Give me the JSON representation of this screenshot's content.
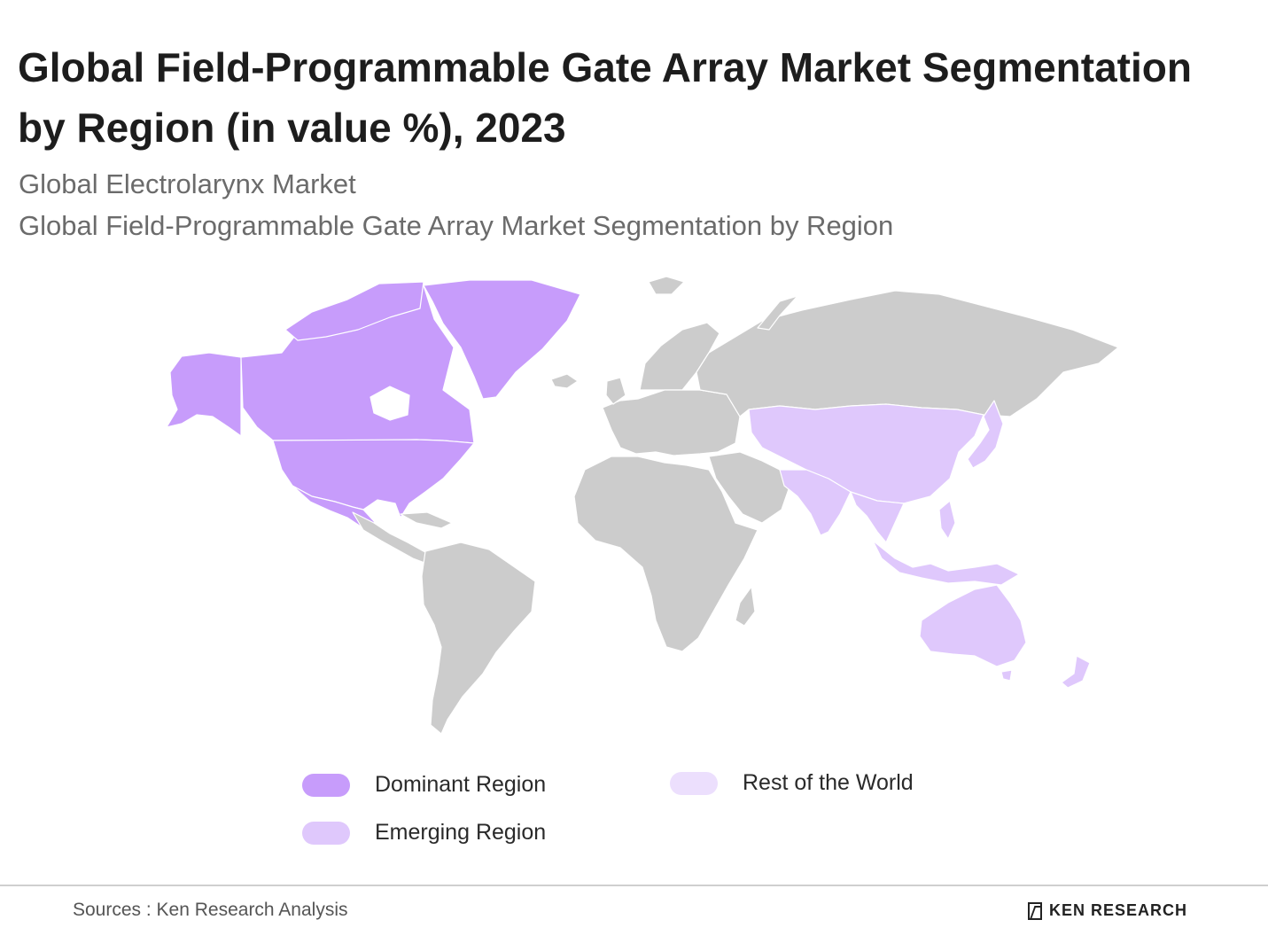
{
  "header": {
    "title": "Global Field-Programmable Gate Array Market Segmentation by Region (in value %), 2023",
    "subtitle_1": "Global Electrolarynx Market",
    "subtitle_2": "Global Field-Programmable Gate Array Market Segmentation by Region"
  },
  "colors": {
    "dominant": "#c79cfb",
    "emerging": "#dfc8fc",
    "rest": "#ecdffd",
    "other_land": "#cccccc"
  },
  "map": {
    "regions": [
      {
        "name": "North America",
        "category": "dominant"
      },
      {
        "name": "Asia-Pacific",
        "category": "emerging"
      },
      {
        "name": "Europe",
        "category": "other"
      },
      {
        "name": "Russia",
        "category": "other"
      },
      {
        "name": "Middle East",
        "category": "other"
      },
      {
        "name": "Africa",
        "category": "other"
      },
      {
        "name": "Latin America",
        "category": "other"
      }
    ]
  },
  "legend": {
    "dominant": "Dominant Region",
    "emerging": "Emerging Region",
    "rest": "Rest of the World"
  },
  "footer": {
    "source": "Sources : Ken Research Analysis",
    "brand": "KEN RESEARCH"
  }
}
